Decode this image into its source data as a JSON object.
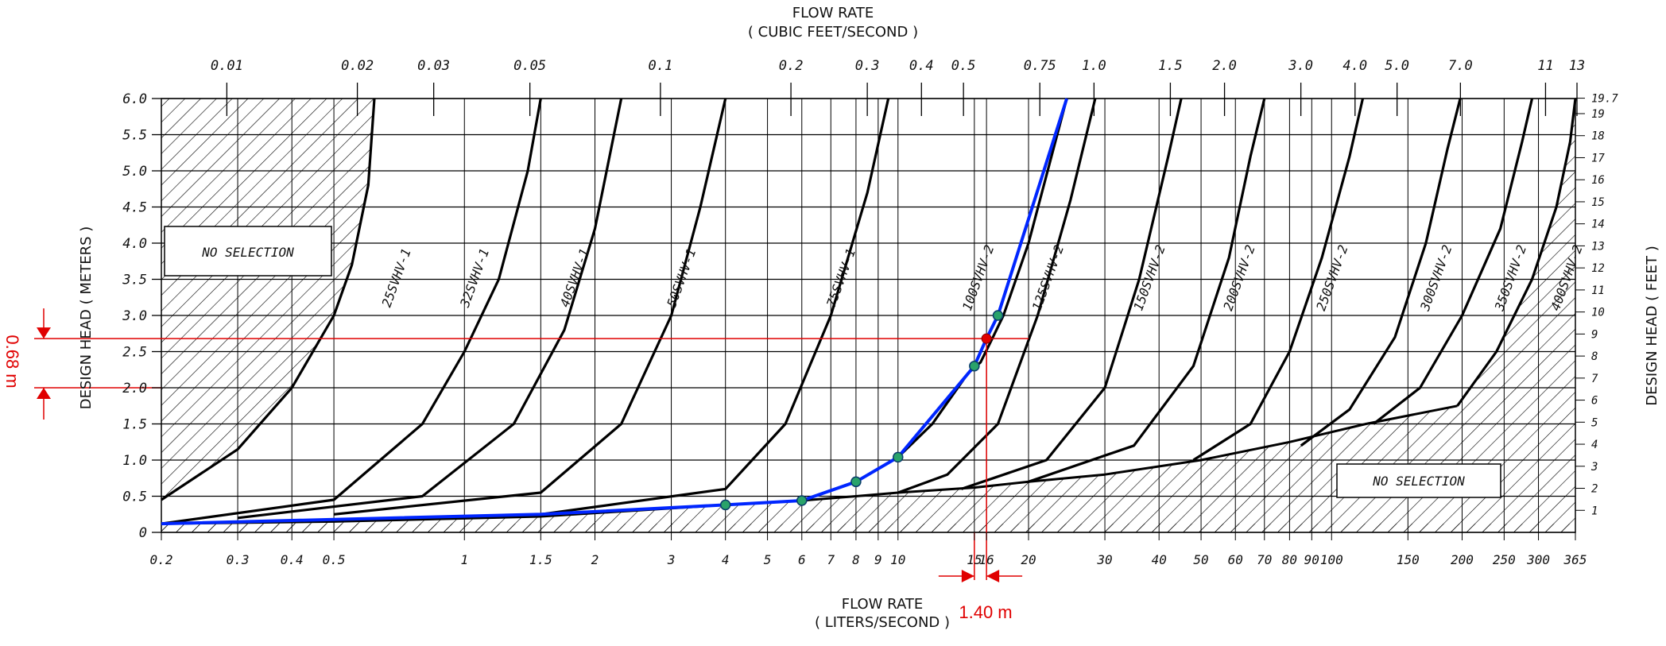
{
  "chart_data": {
    "type": "line",
    "top_title": "FLOW RATE",
    "top_unit": "( CUBIC FEET/SECOND )",
    "bottom_title": "FLOW RATE",
    "bottom_unit": "( LITERS/SECOND )",
    "ylabel_left": "DESIGN HEAD ( METERS )",
    "ylabel_right": "DESIGN HEAD ( FEET )",
    "x_scale": "log",
    "xlim": [
      0.2,
      365
    ],
    "ylim": [
      0,
      6.0
    ],
    "grid": true,
    "x_ticks_lps": [
      "0.2",
      "0.3",
      "0.4",
      "0.5",
      "1",
      "1.5",
      "2",
      "3",
      "4",
      "5",
      "6",
      "7",
      "8",
      "9",
      "10",
      "15",
      "16",
      "20",
      "30",
      "40",
      "50",
      "60",
      "70",
      "80",
      "90",
      "100",
      "150",
      "200",
      "250",
      "300",
      "365"
    ],
    "x_ticks_cfs": [
      "0.01",
      "0.02",
      "0.03",
      "0.05",
      "0.1",
      "0.2",
      "0.3",
      "0.4",
      "0.5",
      "0.75",
      "1.0",
      "1.5",
      "2.0",
      "3.0",
      "4.0",
      "5.0",
      "7.0",
      "11",
      "13"
    ],
    "y_ticks_m": [
      "0",
      "0.5",
      "1.0",
      "1.5",
      "2.0",
      "2.5",
      "3.0",
      "3.5",
      "4.0",
      "4.5",
      "5.0",
      "5.5",
      "6.0"
    ],
    "y_ticks_ft": [
      "1",
      "2",
      "3",
      "4",
      "5",
      "6",
      "7",
      "8",
      "9",
      "10",
      "11",
      "12",
      "13",
      "14",
      "15",
      "16",
      "17",
      "18",
      "19",
      "19.7"
    ],
    "zone_labels": [
      "NO SELECTION",
      "NO SELECTION"
    ],
    "series": [
      {
        "name": "25SVHV-1",
        "x": [
          0.2,
          0.3,
          0.4,
          0.5,
          0.55,
          0.6,
          0.62
        ],
        "y": [
          0.45,
          1.15,
          2.0,
          3.0,
          3.7,
          4.8,
          6.0
        ]
      },
      {
        "name": "32SVHV-1",
        "x": [
          0.2,
          0.5,
          0.8,
          1.0,
          1.2,
          1.4,
          1.5
        ],
        "y": [
          0.12,
          0.45,
          1.5,
          2.5,
          3.5,
          5.0,
          6.0
        ]
      },
      {
        "name": "40SVHV-1",
        "x": [
          0.3,
          0.8,
          1.3,
          1.7,
          2.0,
          2.3
        ],
        "y": [
          0.2,
          0.5,
          1.5,
          2.8,
          4.2,
          6.0
        ]
      },
      {
        "name": "50SVHV-1",
        "x": [
          0.5,
          1.5,
          2.3,
          3.0,
          3.5,
          4.0
        ],
        "y": [
          0.25,
          0.55,
          1.5,
          3.0,
          4.5,
          6.0
        ]
      },
      {
        "name": "75SVHV-1",
        "x": [
          1.5,
          4.0,
          5.5,
          7.0,
          8.5,
          9.5
        ],
        "y": [
          0.25,
          0.6,
          1.5,
          3.0,
          4.7,
          6.0
        ]
      },
      {
        "name": "100SVHV-2",
        "x": [
          4.0,
          6.0,
          8.0,
          10.0,
          12.0,
          14.5,
          15.5,
          16.5,
          17.5,
          20.0,
          24.5
        ],
        "y": [
          0.38,
          0.44,
          0.7,
          1.04,
          1.5,
          2.2,
          2.35,
          2.68,
          3.0,
          4.0,
          6.0
        ]
      },
      {
        "name": "125SVHV-2",
        "x": [
          10.0,
          13.0,
          17.0,
          21.0,
          25.0,
          28.5
        ],
        "y": [
          0.55,
          0.8,
          1.5,
          3.0,
          4.6,
          6.0
        ]
      },
      {
        "name": "150SVHV-2",
        "x": [
          14.0,
          22.0,
          30.0,
          36.0,
          42.0,
          45.0
        ],
        "y": [
          0.6,
          1.0,
          2.0,
          3.5,
          5.2,
          6.0
        ]
      },
      {
        "name": "200SVHV-2",
        "x": [
          20.0,
          35.0,
          48.0,
          58.0,
          65.0,
          70.0
        ],
        "y": [
          0.7,
          1.2,
          2.3,
          3.8,
          5.2,
          6.0
        ]
      },
      {
        "name": "250SVHV-2",
        "x": [
          48.0,
          65.0,
          80.0,
          95.0,
          110.0,
          118.0
        ],
        "y": [
          1.0,
          1.5,
          2.5,
          3.8,
          5.2,
          6.0
        ]
      },
      {
        "name": "300SVHV-2",
        "x": [
          85.0,
          110.0,
          140.0,
          165.0,
          185.0,
          198.0
        ],
        "y": [
          1.2,
          1.7,
          2.7,
          4.0,
          5.3,
          6.0
        ]
      },
      {
        "name": "350SVHV-2",
        "x": [
          125.0,
          160.0,
          200.0,
          245.0,
          275.0,
          290.0
        ],
        "y": [
          1.5,
          2.0,
          3.0,
          4.2,
          5.4,
          6.0
        ]
      },
      {
        "name": "400SVHV-2",
        "x": [
          195.0,
          240.0,
          290.0,
          330.0,
          355.0,
          365.0
        ],
        "y": [
          1.75,
          2.5,
          3.5,
          4.5,
          5.4,
          6.0
        ]
      }
    ],
    "lower_limit": {
      "x": [
        0.2,
        0.5,
        1.5,
        4.0,
        6.0,
        8.0,
        10.0,
        15.0,
        20.0,
        30.0,
        50.0,
        80.0,
        120.0,
        195.0
      ],
      "y": [
        0.12,
        0.15,
        0.22,
        0.38,
        0.44,
        0.5,
        0.55,
        0.62,
        0.7,
        0.8,
        1.0,
        1.25,
        1.5,
        1.75
      ]
    },
    "system_curve": {
      "x": [
        0.2,
        1.5,
        4.0,
        6.0,
        8.0,
        10.0,
        15.0,
        16.0,
        17.0,
        24.5
      ],
      "y": [
        0.12,
        0.25,
        0.38,
        0.44,
        0.7,
        1.04,
        2.3,
        2.68,
        3.0,
        6.0
      ]
    },
    "system_points": {
      "x": [
        4.0,
        6.0,
        8.0,
        10.0,
        15.0,
        17.0
      ],
      "y": [
        0.38,
        0.44,
        0.7,
        1.04,
        2.3,
        3.0
      ]
    },
    "operating_point": {
      "x": 16.0,
      "y": 2.68
    },
    "annotation_head": "0.68 m",
    "annotation_flow": "1.40 m",
    "colors": {
      "curve": "#000000",
      "system": "#0026ff",
      "point": "#2aa36a",
      "annotation": "#e00000",
      "hatch": "#000000"
    }
  }
}
